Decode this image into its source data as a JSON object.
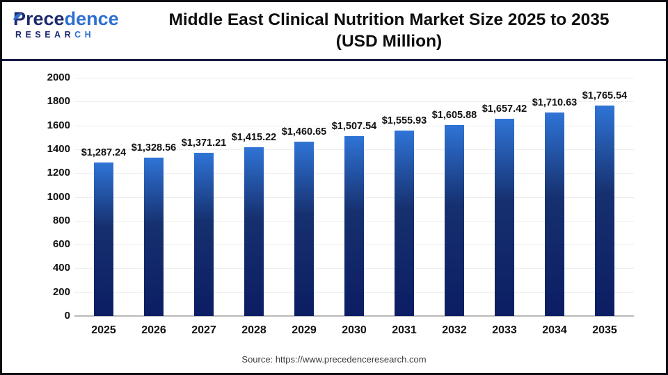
{
  "logo": {
    "name_part1": "Prece",
    "name_part2": "dence",
    "sub_part1": "RESEAR",
    "sub_part2": "CH"
  },
  "header": {
    "title_line1": "Middle East Clinical Nutrition Market Size 2025 to 2035",
    "title_line2": "(USD Million)"
  },
  "footer": {
    "source": "Source: https://www.precedenceresearch.com"
  },
  "chart_data": {
    "type": "bar",
    "title": "Middle East Clinical Nutrition Market Size 2025 to 2035 (USD Million)",
    "xlabel": "",
    "ylabel": "",
    "categories": [
      "2025",
      "2026",
      "2027",
      "2028",
      "2029",
      "2030",
      "2031",
      "2032",
      "2033",
      "2034",
      "2035"
    ],
    "values": [
      1287.24,
      1328.56,
      1371.21,
      1415.22,
      1460.65,
      1507.54,
      1555.93,
      1605.88,
      1657.42,
      1710.63,
      1765.54
    ],
    "value_labels": [
      "$1,287.24",
      "$1,328.56",
      "$1,371.21",
      "$1,415.22",
      "$1,460.65",
      "$1,507.54",
      "$1,555.93",
      "$1,605.88",
      "$1,657.42",
      "$1,710.63",
      "$1,765.54"
    ],
    "ylim": [
      0,
      2000
    ],
    "yticks": [
      0,
      200,
      400,
      600,
      800,
      1000,
      1200,
      1400,
      1600,
      1800,
      2000
    ],
    "grid": "horizontal",
    "legend": "none",
    "bar_gradient_top": "#2f74d6",
    "bar_gradient_mid": "#16306f",
    "bar_gradient_bottom": "#0c1d63"
  }
}
